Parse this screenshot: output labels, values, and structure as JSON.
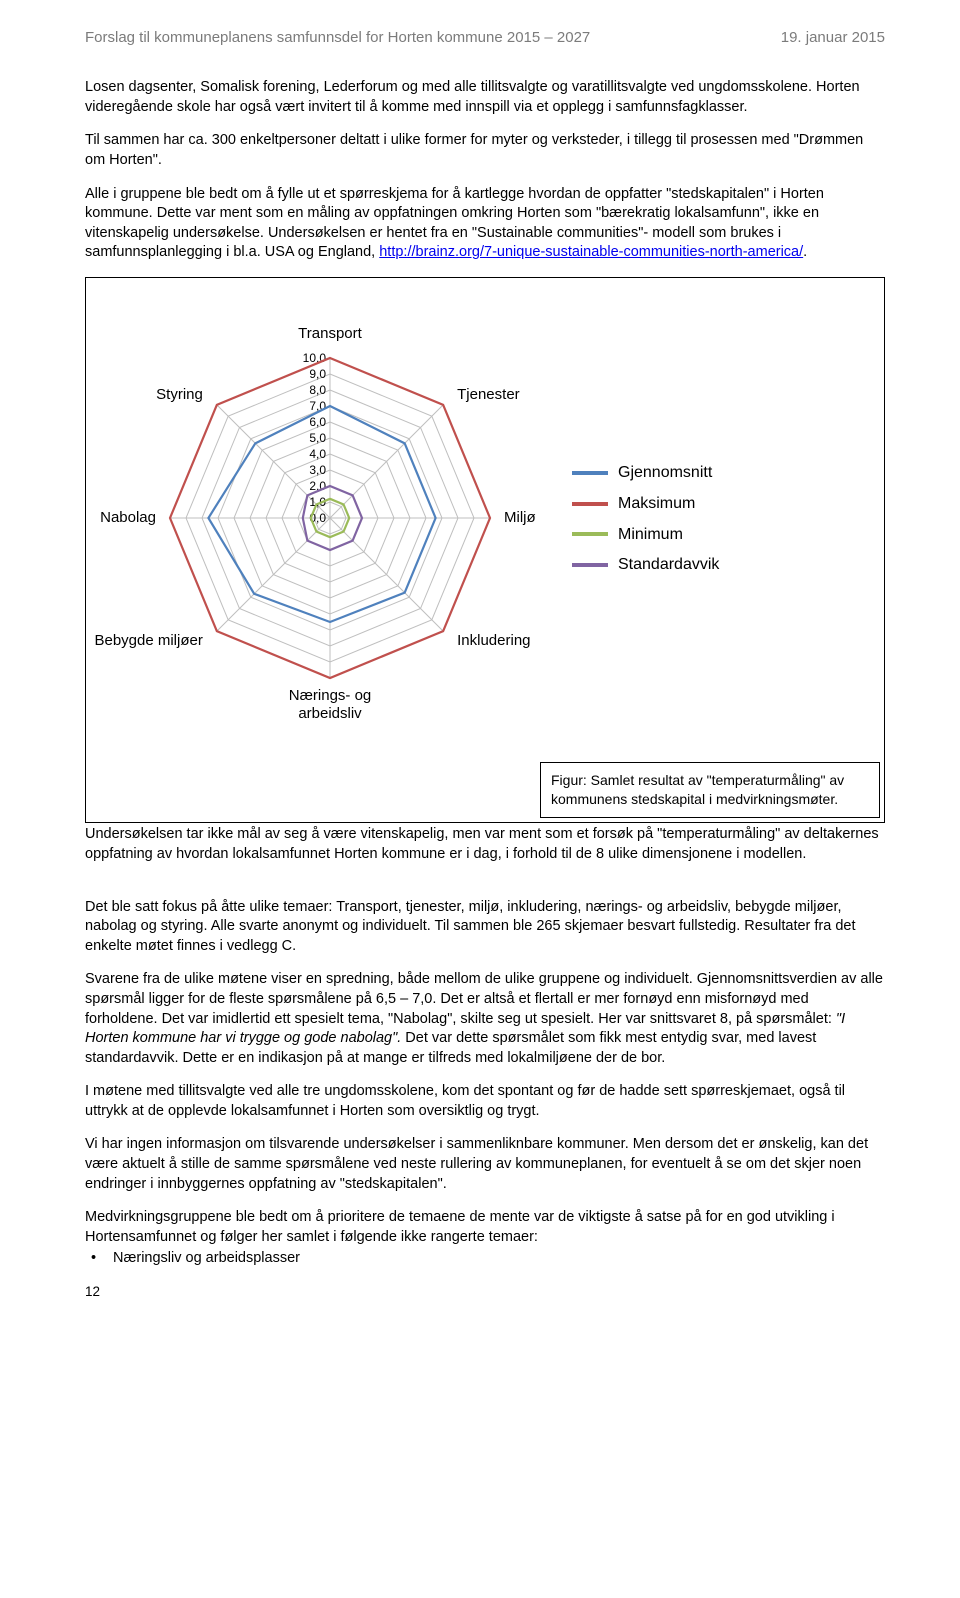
{
  "header": {
    "left": "Forslag til kommuneplanens samfunnsdel for Horten kommune 2015 – 2027",
    "right": "19. januar 2015"
  },
  "para1": "Losen dagsenter, Somalisk forening, Lederforum og med alle tillitsvalgte og varatillitsvalgte ved ungdomsskolene.  Horten videregående skole har også vært invitert til å komme med innspill via et opplegg i samfunnsfagklasser.",
  "para2": "Til sammen har ca. 300 enkeltpersoner deltatt i ulike former for myter og verksteder, i tillegg til prosessen med \"Drømmen om Horten\".",
  "para3_pre": "Alle i gruppene ble bedt om å fylle ut et spørreskjema for å kartlegge hvordan de oppfatter \"stedskapitalen\" i Horten kommune. Dette var ment som en måling av oppfatningen omkring Horten som \"bærekratig lokalsamfunn\", ikke en vitenskapelig undersøkelse. Undersøkelsen er hentet fra en \"Sustainable communities\"- modell som brukes i samfunnsplanlegging i bl.a. USA og England, ",
  "para3_link": "http://brainz.org/7-unique-sustainable-communities-north-america/",
  "para3_post": ".",
  "chart": {
    "type": "radar",
    "axes": [
      "Transport",
      "Tjenester",
      "Miljø",
      "Inkludering",
      "Nærings- og\narbeidsliv",
      "Bebygde miljøer",
      "Nabolag",
      "Styring"
    ],
    "radial_max": 10,
    "radial_ticks": [
      0,
      1,
      2,
      3,
      4,
      5,
      6,
      7,
      8,
      9,
      10
    ],
    "radial_tick_labels": [
      "0,0",
      "1,0",
      "2,0",
      "3,0",
      "4,0",
      "5,0",
      "6,0",
      "7,0",
      "8,0",
      "9,0",
      "10,0"
    ],
    "series": [
      {
        "name": "Gjennomsnitt",
        "color": "#4f81bd",
        "values": [
          7.0,
          6.6,
          6.6,
          6.6,
          6.5,
          6.7,
          7.6,
          6.6
        ]
      },
      {
        "name": "Maksimum",
        "color": "#c0504d",
        "values": [
          10,
          10,
          10,
          10,
          10,
          10,
          10,
          10
        ]
      },
      {
        "name": "Minimum",
        "color": "#9bbb59",
        "values": [
          1.2,
          1.2,
          1.2,
          1.2,
          1.2,
          1.2,
          1.2,
          1.2
        ]
      },
      {
        "name": "Standardavvik",
        "color": "#8064a2",
        "values": [
          2.0,
          2.0,
          2.0,
          2.0,
          2.0,
          2.0,
          1.7,
          2.0
        ]
      }
    ],
    "grid_color": "#bfbfbf",
    "background_color": "#ffffff",
    "axis_label_fontsize": 15,
    "tick_label_fontsize": 12,
    "line_width": 2.2,
    "size": 440
  },
  "caption": "Figur: Samlet resultat av \"temperaturmåling\" av kommunens stedskapital i medvirkningsmøter.",
  "para4": "Undersøkelsen tar ikke mål av seg å være vitenskapelig, men var ment som et forsøk på \"temperaturmåling\" av deltakernes oppfatning av hvordan lokalsamfunnet Horten kommune er i dag, i forhold til de 8 ulike dimensjonene i modellen.",
  "para5": "Det ble satt fokus på åtte ulike temaer: Transport, tjenester, miljø, inkludering, nærings- og arbeidsliv, bebygde miljøer, nabolag og styring. Alle svarte anonymt og individuelt.  Til sammen ble 265 skjemaer besvart fullstedig. Resultater fra det enkelte møtet finnes i vedlegg C.",
  "para6_a": "Svarene fra de ulike møtene viser en spredning, både mellom de ulike gruppene og individuelt. Gjennomsnittsverdien av alle spørsmål ligger for de fleste spørsmålene på 6,5 – 7,0.  Det er altså et flertall er mer fornøyd enn misfornøyd med forholdene.  Det var imidlertid ett spesielt tema, \"Nabolag\", skilte seg ut spesielt.  Her var snittsvaret 8, på spørsmålet: ",
  "para6_q": "\"I Horten kommune har vi trygge og gode nabolag\".",
  "para6_b": " Det var dette spørsmålet som fikk mest entydig svar, med lavest standardavvik. Dette er en indikasjon på at mange er tilfreds med lokalmiljøene der de bor.",
  "para7": "I møtene med tillitsvalgte ved alle tre ungdomsskolene, kom det spontant og før de hadde sett spørreskjemaet, også til uttrykk at de opplevde lokalsamfunnet i Horten som oversiktlig og trygt.",
  "para8": "Vi har ingen informasjon om tilsvarende undersøkelser i sammenliknbare kommuner. Men dersom det er ønskelig, kan det være aktuelt å stille de samme spørsmålene ved neste rullering av kommuneplanen, for eventuelt å se om det skjer noen endringer i innbyggernes oppfatning av \"stedskapitalen\".",
  "para9": "Medvirkningsgruppene ble bedt om å prioritere de temaene de mente var de viktigste å satse på for en god utvikling i Hortensamfunnet og følger her samlet i følgende ikke rangerte temaer:",
  "bullet1": "Næringsliv og arbeidsplasser",
  "pagenum": "12"
}
